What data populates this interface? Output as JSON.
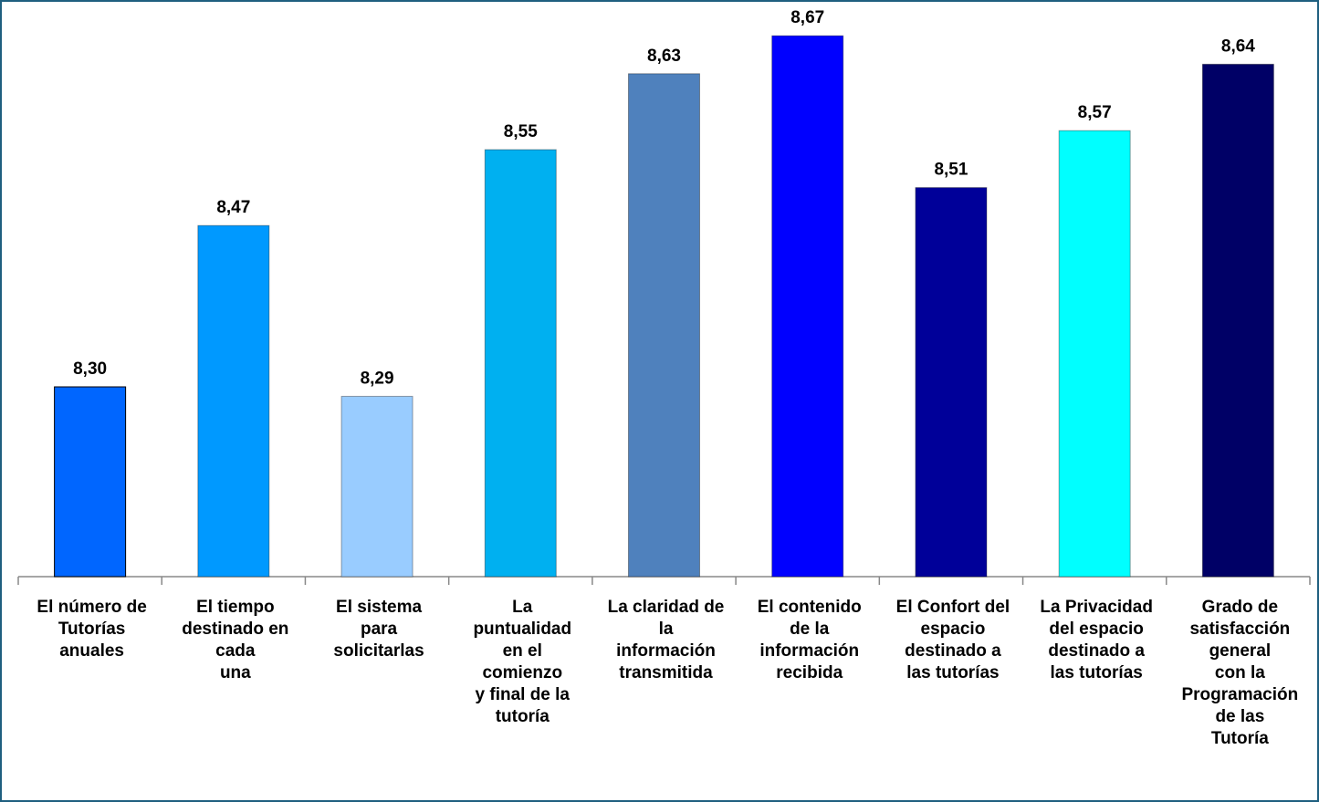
{
  "chart_data": {
    "type": "bar",
    "categories": [
      "El número de\nTutorías\nanuales",
      "El tiempo\ndestinado en\ncada\nuna",
      "El sistema\npara\nsolicitarlas",
      "La\npuntualidad\nen el\ncomienzo\ny final de la\ntutoría",
      "La claridad de\nla\ninformación\ntransmitida",
      "El contenido\nde la\ninformación\nrecibida",
      "El Confort del\nespacio\ndestinado a\nlas tutorías",
      "La Privacidad\ndel espacio\ndestinado a\nlas tutorías",
      "Grado de\nsatisfacción\ngeneral\ncon la\nProgramación\nde las\nTutoría"
    ],
    "values": [
      8.3,
      8.47,
      8.29,
      8.55,
      8.63,
      8.67,
      8.51,
      8.57,
      8.64
    ],
    "value_labels": [
      "8,30",
      "8,47",
      "8,29",
      "8,55",
      "8,63",
      "8,67",
      "8,51",
      "8,57",
      "8,64"
    ],
    "colors": [
      "#0066ff",
      "#0099ff",
      "#99ccff",
      "#00b0f0",
      "#4f81bd",
      "#0000ff",
      "#000099",
      "#00ffff",
      "#000066"
    ],
    "ylim": [
      8.1,
      8.7
    ]
  }
}
